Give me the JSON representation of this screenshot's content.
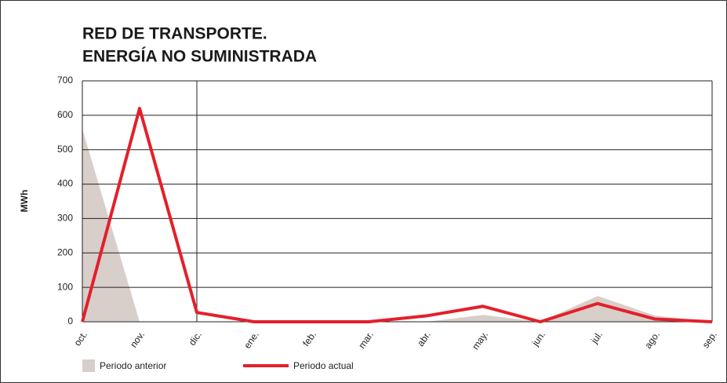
{
  "chart_data": {
    "type": "line",
    "title": [
      "RED DE TRANSPORTE.",
      "ENERGÍA NO SUMINISTRADA"
    ],
    "y_label": "MWh",
    "categories": [
      "oct.",
      "nov.",
      "dic.",
      "ene.",
      "feb.",
      "mar.",
      "abr.",
      "may.",
      "jun.",
      "jul.",
      "ago.",
      "sep."
    ],
    "series": [
      {
        "name": "Periodo anterior",
        "type": "area",
        "color": "#d8ceca",
        "values": [
          560,
          0,
          0,
          0,
          0,
          0,
          0,
          20,
          0,
          75,
          18,
          0
        ]
      },
      {
        "name": "Periodo actual",
        "type": "line",
        "color": "#e3202a",
        "values": [
          0,
          620,
          27,
          0,
          0,
          0,
          17,
          45,
          0,
          53,
          8,
          0
        ]
      }
    ],
    "ylim": [
      0,
      700
    ],
    "yticks": [
      0,
      100,
      200,
      300,
      400,
      500,
      600,
      700
    ],
    "grid": true
  }
}
